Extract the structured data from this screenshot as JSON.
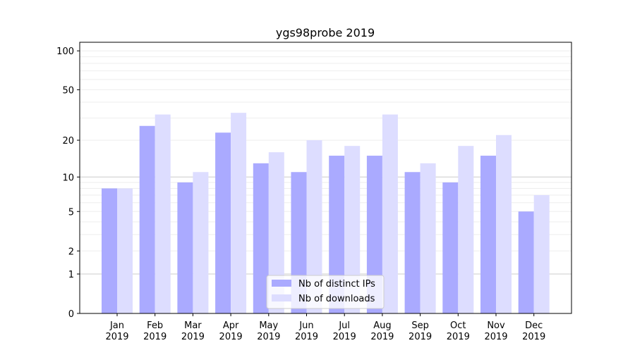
{
  "chart_data": {
    "type": "bar",
    "title": "ygs98probe 2019",
    "xlabel": "",
    "ylabel": "",
    "yscale": "log(1+y)",
    "ylim": [
      0,
      110
    ],
    "yticks": [
      0,
      1,
      2,
      5,
      10,
      20,
      50,
      100
    ],
    "categories": [
      "Jan\n2019",
      "Feb\n2019",
      "Mar\n2019",
      "Apr\n2019",
      "May\n2019",
      "Jun\n2019",
      "Jul\n2019",
      "Aug\n2019",
      "Sep\n2019",
      "Oct\n2019",
      "Nov\n2019",
      "Dec\n2019"
    ],
    "series": [
      {
        "name": "Nb of distinct IPs",
        "color": "#aaaaff",
        "values": [
          8,
          26,
          9,
          23,
          13,
          11,
          15,
          15,
          11,
          9,
          15,
          5
        ]
      },
      {
        "name": "Nb of downloads",
        "color": "#ddddff",
        "values": [
          8,
          32,
          11,
          33,
          16,
          20,
          18,
          32,
          13,
          18,
          22,
          7
        ]
      }
    ],
    "grid": true,
    "legend": "lower-center"
  }
}
